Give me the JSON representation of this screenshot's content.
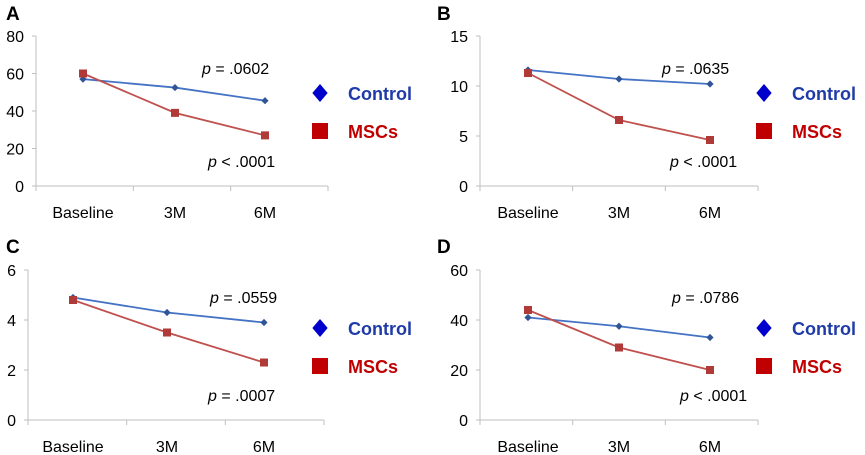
{
  "figure": {
    "background": "#ffffff"
  },
  "colors": {
    "control": "#4472c4",
    "control_marker": "#2f5597",
    "mscs": "#c0504d",
    "mscs_marker": "#b03a37",
    "legend_control": "#1f3ba8",
    "legend_control_marker": "#0000cc",
    "legend_mscs": "#c00000",
    "legend_mscs_marker": "#c00000",
    "axis": "#bfbfbf"
  },
  "chart_data": [
    {
      "panel": "A",
      "type": "line",
      "categories": [
        "Baseline",
        "3M",
        "6M"
      ],
      "ylim": [
        0,
        80
      ],
      "yticks": [
        0,
        20,
        40,
        60,
        80
      ],
      "series": [
        {
          "name": "Control",
          "values": [
            57,
            52.5,
            45.5
          ]
        },
        {
          "name": "MSCs",
          "values": [
            60,
            39,
            27
          ]
        }
      ],
      "annotations": {
        "control": {
          "prefix": "p",
          "text": " = .0602"
        },
        "mscs": {
          "prefix": "p",
          "text": " < .0001"
        }
      },
      "legend": [
        "Control",
        "MSCs"
      ]
    },
    {
      "panel": "B",
      "type": "line",
      "categories": [
        "Baseline",
        "3M",
        "6M"
      ],
      "ylim": [
        0,
        15
      ],
      "yticks": [
        0,
        5,
        10,
        15
      ],
      "series": [
        {
          "name": "Control",
          "values": [
            11.6,
            10.7,
            10.2
          ]
        },
        {
          "name": "MSCs",
          "values": [
            11.3,
            6.6,
            4.6
          ]
        }
      ],
      "annotations": {
        "control": {
          "prefix": "p",
          "text": " = .0635"
        },
        "mscs": {
          "prefix": "p",
          "text": " < .0001"
        }
      },
      "legend": [
        "Control",
        "MSCs"
      ]
    },
    {
      "panel": "C",
      "type": "line",
      "categories": [
        "Baseline",
        "3M",
        "6M"
      ],
      "ylim": [
        0,
        6
      ],
      "yticks": [
        0,
        2,
        4,
        6
      ],
      "series": [
        {
          "name": "Control",
          "values": [
            4.9,
            4.3,
            3.9
          ]
        },
        {
          "name": "MSCs",
          "values": [
            4.8,
            3.5,
            2.3
          ]
        }
      ],
      "annotations": {
        "control": {
          "prefix": "p",
          "text": " = .0559"
        },
        "mscs": {
          "prefix": "p",
          "text": " = .0007"
        }
      },
      "legend": [
        "Control",
        "MSCs"
      ]
    },
    {
      "panel": "D",
      "type": "line",
      "categories": [
        "Baseline",
        "3M",
        "6M"
      ],
      "ylim": [
        0,
        60
      ],
      "yticks": [
        0,
        20,
        40,
        60
      ],
      "series": [
        {
          "name": "Control",
          "values": [
            41,
            37.5,
            33
          ]
        },
        {
          "name": "MSCs",
          "values": [
            44,
            29,
            20
          ]
        }
      ],
      "annotations": {
        "control": {
          "prefix": "p",
          "text": " = .0786"
        },
        "mscs": {
          "prefix": "p",
          "text": " < .0001"
        }
      },
      "legend": [
        "Control",
        "MSCs"
      ]
    }
  ]
}
